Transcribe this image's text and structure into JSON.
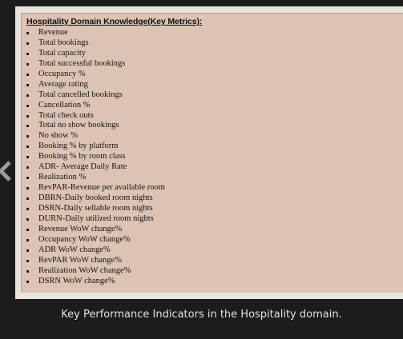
{
  "document": {
    "title": "Hospitality Domain Knowledge(Key Metrics):",
    "items": [
      "Revenue",
      "Total bookings",
      "Total capacity",
      "Total successful bookings",
      "Occupancy %",
      "Average rating",
      "Total cancelled bookings",
      "Cancellation %",
      "Total check outs",
      "Total no show bookings",
      "No show %",
      "Booking % by platform",
      "Booking % by room class",
      "ADR- Average Daily Rate",
      "Realization %",
      "RevPAR-Revenue per available room",
      "DBRN-Daily booked room nights",
      "DSRN-Daily sellable room nights",
      "DURN-Daily utilized room nights",
      "Revenue WoW change%",
      "Occupancy WoW change%",
      "ADR WoW change%",
      "RevPAR WoW change%",
      "Realization WoW change%",
      "DSRN WoW change%"
    ]
  },
  "caption": "Key Performance Indicators in the Hospitality domain.",
  "icons": {
    "back": "chevron-left-icon"
  },
  "colors": {
    "page_background": "#1c1c1c",
    "panel_background": "#dcc3b3",
    "frame_background": "#e7e3df",
    "caption_text": "#e2e2e2"
  }
}
